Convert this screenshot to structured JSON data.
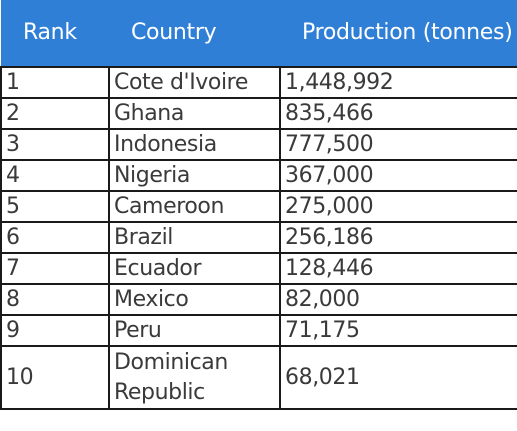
{
  "table": {
    "header_color": "#2f7fd6",
    "headers": {
      "rank": "Rank",
      "country": "Country",
      "production": "Production (tonnes)"
    },
    "rows": [
      {
        "rank": "1",
        "country": "Cote d'Ivoire",
        "production": "1,448,992"
      },
      {
        "rank": "2",
        "country": "Ghana",
        "production": "835,466"
      },
      {
        "rank": "3",
        "country": "Indonesia",
        "production": "777,500"
      },
      {
        "rank": "4",
        "country": "Nigeria",
        "production": "367,000"
      },
      {
        "rank": "5",
        "country": "Cameroon",
        "production": "275,000"
      },
      {
        "rank": "6",
        "country": "Brazil",
        "production": "256,186"
      },
      {
        "rank": "7",
        "country": "Ecuador",
        "production": "128,446"
      },
      {
        "rank": "8",
        "country": "Mexico",
        "production": "82,000"
      },
      {
        "rank": "9",
        "country": "Peru",
        "production": "71,175"
      },
      {
        "rank": "10",
        "country": "Dominican Republic",
        "production": "68,021"
      }
    ]
  }
}
